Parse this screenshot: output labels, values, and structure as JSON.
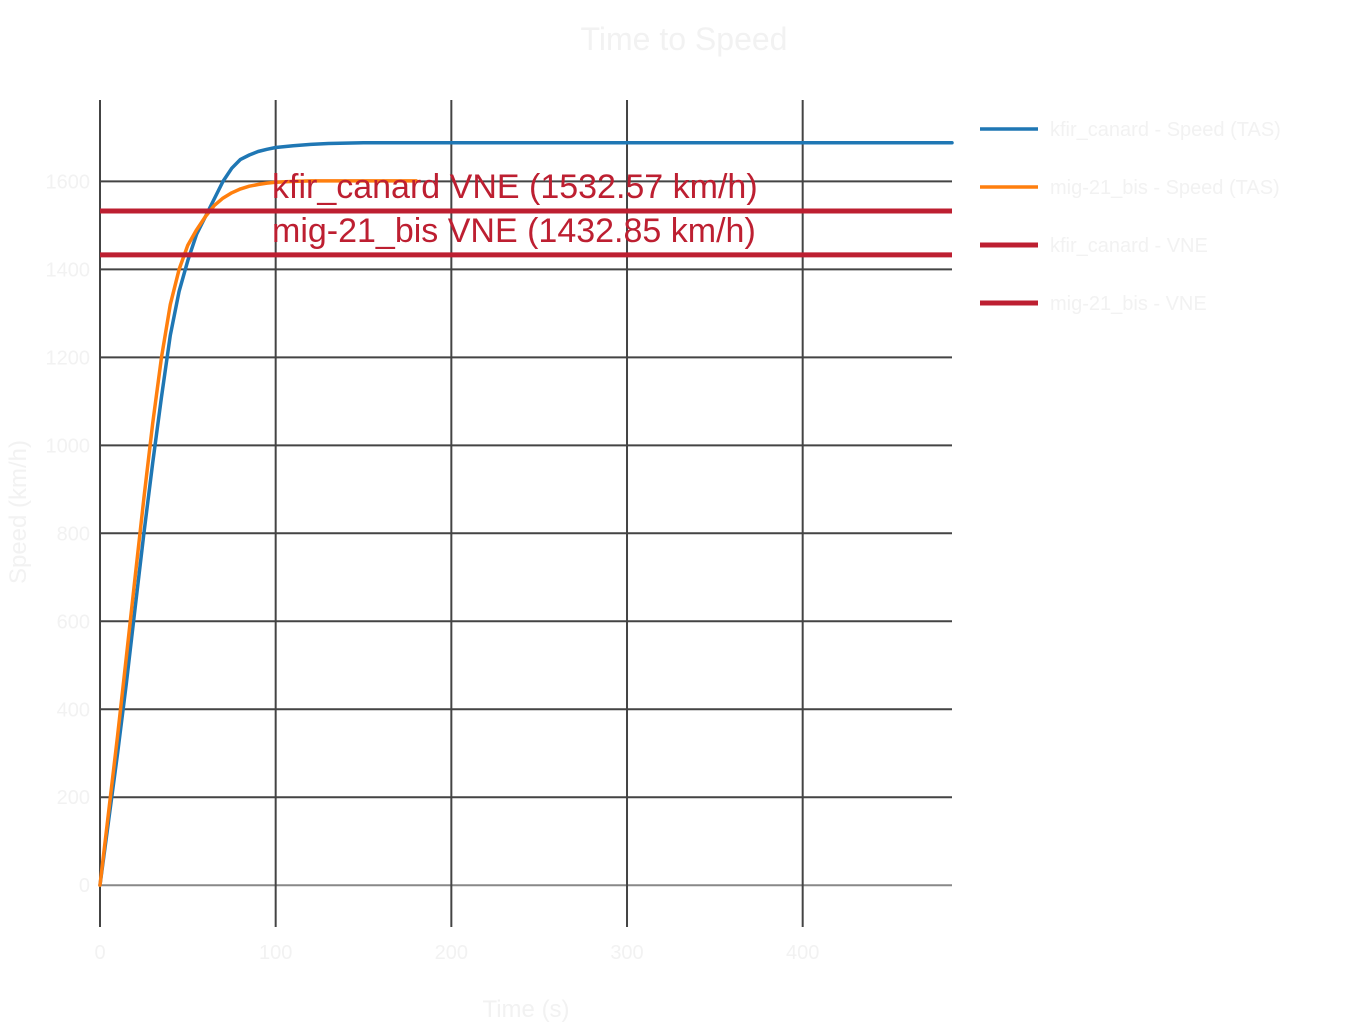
{
  "chart_data": {
    "type": "line",
    "title": "Time to Speed",
    "xlabel": "Time (s)",
    "ylabel": "Speed (km/h)",
    "xlim": [
      0,
      485
    ],
    "ylim": [
      -95,
      1785
    ],
    "x_ticks": [
      0,
      100,
      200,
      300,
      400
    ],
    "y_ticks": [
      0,
      200,
      400,
      600,
      800,
      1000,
      1200,
      1400,
      1600
    ],
    "grid": true,
    "legend_position": "right",
    "series": [
      {
        "name": "kfir_canard - Speed (TAS)",
        "color": "#1f77b4",
        "x": [
          0,
          5,
          10,
          15,
          20,
          25,
          30,
          35,
          40,
          45,
          50,
          55,
          60,
          65,
          70,
          75,
          80,
          85,
          90,
          95,
          100,
          110,
          120,
          130,
          140,
          150,
          175,
          200,
          300,
          400,
          485
        ],
        "y": [
          0,
          150,
          300,
          460,
          630,
          800,
          960,
          1110,
          1250,
          1350,
          1420,
          1480,
          1520,
          1560,
          1600,
          1630,
          1650,
          1660,
          1668,
          1673,
          1677,
          1681,
          1684,
          1686,
          1687,
          1688,
          1688,
          1688,
          1688,
          1688,
          1688
        ]
      },
      {
        "name": "mig-21_bis - Speed (TAS)",
        "color": "#ff7f0e",
        "x": [
          0,
          5,
          10,
          15,
          20,
          25,
          30,
          35,
          40,
          45,
          50,
          55,
          60,
          65,
          70,
          75,
          80,
          85,
          90,
          95,
          100,
          110,
          120,
          130,
          140,
          150,
          160,
          170,
          180
        ],
        "y": [
          0,
          170,
          340,
          520,
          700,
          880,
          1050,
          1200,
          1320,
          1400,
          1455,
          1490,
          1520,
          1545,
          1562,
          1574,
          1583,
          1589,
          1593,
          1596,
          1598,
          1600,
          1601,
          1601,
          1601,
          1601,
          1601,
          1601,
          1601
        ]
      },
      {
        "name": "kfir_canard - VNE",
        "color": "#bd1f31",
        "constant": 1532.57,
        "annotation": "kfir_canard VNE (1532.57 km/h)"
      },
      {
        "name": "mig-21_bis - VNE",
        "color": "#bd1f31",
        "constant": 1432.85,
        "annotation": "mig-21_bis VNE (1432.85 km/h)"
      }
    ]
  },
  "colors": {
    "grid": "#444444",
    "zero_line": "#888888",
    "faint_text": "#f2f2f2",
    "vne": "#bd1f31"
  }
}
